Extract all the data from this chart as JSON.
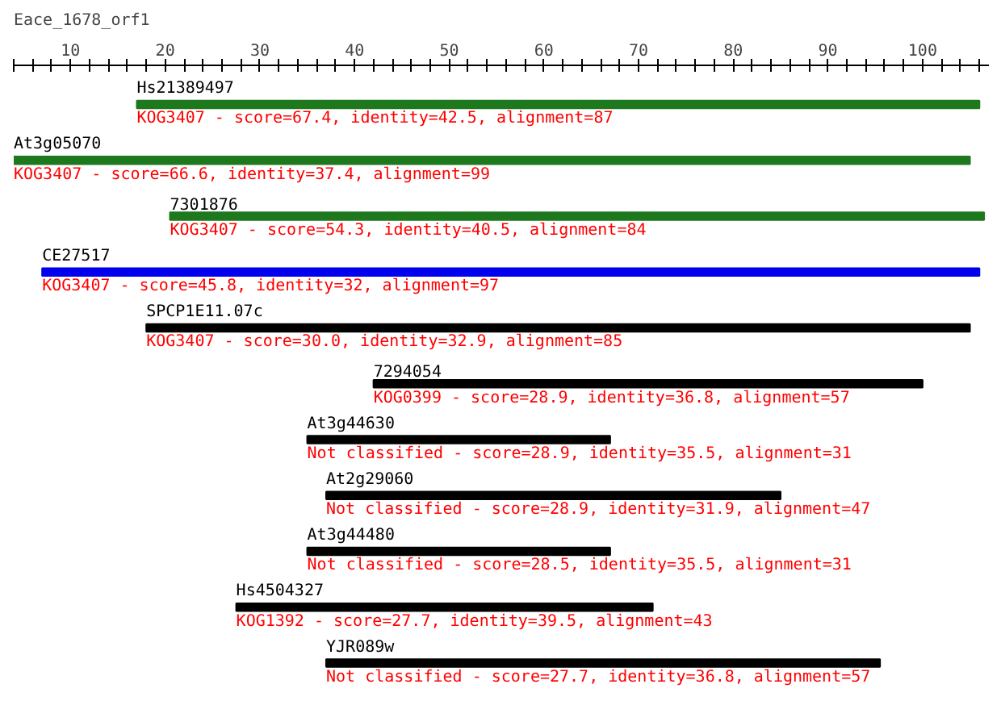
{
  "chart_data": {
    "type": "bar",
    "orientation": "horizontal",
    "title": "Eace_1678_orf1",
    "categories": [
      "Hs21389497",
      "At3g05070",
      "7301876",
      "CE27517",
      "SPCP1E11.07c",
      "7294054",
      "At3g44630",
      "At2g29060",
      "At3g44480",
      "Hs4504327",
      "YJR089w"
    ],
    "base": [
      17,
      4,
      20.5,
      7,
      18,
      42,
      35,
      37,
      35,
      27.5,
      37
    ],
    "values": [
      89,
      101,
      86,
      99,
      87,
      58,
      32,
      48,
      32,
      44,
      58.5
    ],
    "colors": [
      "#1e781e",
      "#1e781e",
      "#1e781e",
      "#0000ee",
      "#000000",
      "#000000",
      "#000000",
      "#000000",
      "#000000",
      "#000000",
      "#000000"
    ],
    "xlim": [
      4,
      107
    ],
    "xticks": [
      {
        "value": 4,
        "label": null
      },
      {
        "value": 6,
        "label": null
      },
      {
        "value": 8,
        "label": null
      },
      10,
      {
        "value": 12,
        "label": null
      },
      {
        "value": 14,
        "label": null
      },
      {
        "value": 16,
        "label": null
      },
      {
        "value": 18,
        "label": null
      },
      20,
      {
        "value": 22,
        "label": null
      },
      {
        "value": 24,
        "label": null
      },
      {
        "value": 26,
        "label": null
      },
      {
        "value": 28,
        "label": null
      },
      30,
      {
        "value": 32,
        "label": null
      },
      {
        "value": 34,
        "label": null
      },
      {
        "value": 36,
        "label": null
      },
      {
        "value": 38,
        "label": null
      },
      40,
      {
        "value": 42,
        "label": null
      },
      {
        "value": 44,
        "label": null
      },
      {
        "value": 46,
        "label": null
      },
      {
        "value": 48,
        "label": null
      },
      50,
      {
        "value": 52,
        "label": null
      },
      {
        "value": 54,
        "label": null
      },
      {
        "value": 56,
        "label": null
      },
      {
        "value": 58,
        "label": null
      },
      60,
      {
        "value": 62,
        "label": null
      },
      {
        "value": 64,
        "label": null
      },
      {
        "value": 66,
        "label": null
      },
      {
        "value": 68,
        "label": null
      },
      70,
      {
        "value": 72,
        "label": null
      },
      {
        "value": 74,
        "label": null
      },
      {
        "value": 76,
        "label": null
      },
      {
        "value": 78,
        "label": null
      },
      80,
      {
        "value": 82,
        "label": null
      },
      {
        "value": 84,
        "label": null
      },
      {
        "value": 86,
        "label": null
      },
      {
        "value": 88,
        "label": null
      },
      90,
      {
        "value": 92,
        "label": null
      },
      {
        "value": 94,
        "label": null
      },
      {
        "value": 96,
        "label": null
      },
      {
        "value": 98,
        "label": null
      },
      100,
      {
        "value": 102,
        "label": null
      },
      {
        "value": 104,
        "label": null
      },
      {
        "value": 106,
        "label": null
      }
    ],
    "grid": false,
    "annotations": [
      {
        "text": "KOG3407 - score=67.4, identity=42.5, alignment=87",
        "x": 17,
        "y": "Hs21389497"
      },
      {
        "text": "KOG3407 - score=66.6, identity=37.4, alignment=99",
        "x": 4,
        "y": "At3g05070"
      },
      {
        "text": "KOG3407 - score=54.3, identity=40.5, alignment=84",
        "x": 20.5,
        "y": "7301876"
      },
      {
        "text": "KOG3407 - score=45.8, identity=32, alignment=97",
        "x": 7,
        "y": "CE27517"
      },
      {
        "text": "KOG3407 - score=30.0, identity=32.9, alignment=85",
        "x": 18,
        "y": "SPCP1E11.07c"
      },
      {
        "text": "KOG0399 - score=28.9, identity=36.8, alignment=57",
        "x": 42,
        "y": "7294054"
      },
      {
        "text": "Not classified - score=28.9, identity=35.5, alignment=31",
        "x": 35,
        "y": "At3g44630"
      },
      {
        "text": "Not classified - score=28.9, identity=31.9, alignment=47",
        "x": 37,
        "y": "At2g29060"
      },
      {
        "text": "Not classified - score=28.5, identity=35.5, alignment=31",
        "x": 35,
        "y": "At3g44480"
      },
      {
        "text": "KOG1392 - score=27.7, identity=39.5, alignment=43",
        "x": 27.5,
        "y": "Hs4504327"
      },
      {
        "text": "Not classified - score=27.7, identity=36.8, alignment=57",
        "x": 37,
        "y": "YJR089w"
      }
    ]
  }
}
